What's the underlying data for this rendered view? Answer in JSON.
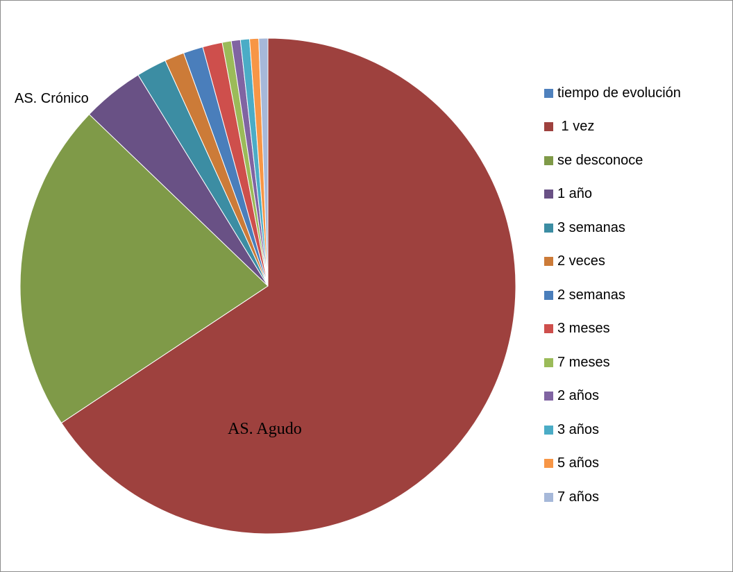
{
  "chart_data": {
    "type": "pie",
    "title": "",
    "start_angle_deg": 0,
    "direction": "clockwise",
    "slices": [
      {
        "label": "tiempo de evolución",
        "value": 0,
        "color": "#4F81BD"
      },
      {
        "label": " 1 vez",
        "value": 66.6,
        "color": "#9E413E"
      },
      {
        "label": "se desconoce",
        "value": 21.8,
        "color": "#7F9A48"
      },
      {
        "label": "1 año",
        "value": 4.1,
        "color": "#695185"
      },
      {
        "label": "3 semanas",
        "value": 2.0,
        "color": "#3C8DA3"
      },
      {
        "label": "2 veces",
        "value": 1.3,
        "color": "#CC7B38"
      },
      {
        "label": "2 semanas",
        "value": 1.3,
        "color": "#4A7EBB"
      },
      {
        "label": "3 meses",
        "value": 1.3,
        "color": "#CE4F4C"
      },
      {
        "label": "7 meses",
        "value": 0.6,
        "color": "#9BBB59"
      },
      {
        "label": "2 años",
        "value": 0.6,
        "color": "#8064A2"
      },
      {
        "label": "3 años",
        "value": 0.6,
        "color": "#4BACC6"
      },
      {
        "label": "5 años",
        "value": 0.6,
        "color": "#F79646"
      },
      {
        "label": "7 años",
        "value": 0.6,
        "color": "#A6B8D9"
      }
    ],
    "annotations": [
      {
        "id": "cronico",
        "text": "AS. Crónico"
      },
      {
        "id": "agudo",
        "text": "AS. Agudo"
      }
    ],
    "legend_position": "right"
  }
}
